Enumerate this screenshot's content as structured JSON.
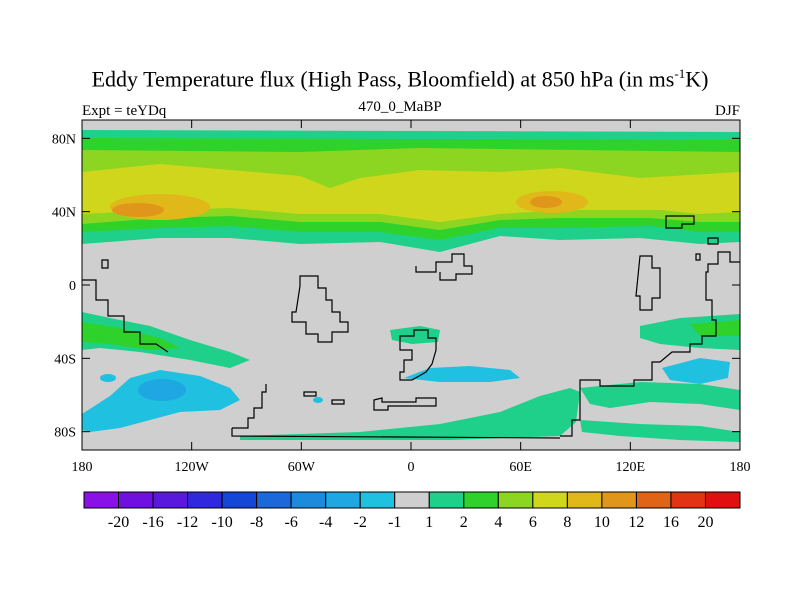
{
  "title": {
    "main": "Eddy Temperature flux (High Pass, Bloomfield) at 850 hPa (in ms",
    "sup": "-1",
    "end": "K)"
  },
  "subtitle_left": "Expt = teYDq",
  "subtitle_center": "470_0_MaBP",
  "subtitle_right": "DJF",
  "x_ticks": [
    "180",
    "120W",
    "60W",
    "0",
    "60E",
    "120E",
    "180"
  ],
  "y_ticks": [
    "80N",
    "40N",
    "0",
    "40S",
    "80S"
  ],
  "colorbar": {
    "colors": [
      "#8a10e8",
      "#7010e0",
      "#5a18dc",
      "#2f28dc",
      "#1446d8",
      "#1a68da",
      "#1c8bde",
      "#1ea7e2",
      "#1fc0e0",
      "#cfcfcf",
      "#1ed08a",
      "#2fd22a",
      "#8cd622",
      "#d0d61c",
      "#e0b81a",
      "#e0961a",
      "#e06416",
      "#e03412",
      "#e01010"
    ],
    "labels": [
      "-20",
      "-16",
      "-12",
      "-10",
      "-8",
      "-6",
      "-4",
      "-2",
      "-1",
      "1",
      "2",
      "4",
      "6",
      "8",
      "10",
      "12",
      "16",
      "20"
    ]
  },
  "chart_data": {
    "type": "heatmap",
    "title": "Eddy Temperature flux (High Pass, Bloomfield) at 850 hPa (in ms-1K)",
    "region": "global",
    "x_range": [
      -180,
      180
    ],
    "y_range": [
      -90,
      90
    ],
    "levels": [
      -20,
      -16,
      -12,
      -10,
      -8,
      -6,
      -4,
      -2,
      -1,
      1,
      2,
      4,
      6,
      8,
      10,
      12,
      16,
      20
    ],
    "features": [
      {
        "lat_band": [
          28,
          85
        ],
        "lon_range": [
          -180,
          180
        ],
        "level_range": [
          1,
          8
        ],
        "note": "zonal band"
      },
      {
        "center_lon": -140,
        "center_lat": 42,
        "level_range": [
          10,
          12
        ]
      },
      {
        "center_lon": 65,
        "center_lat": 45,
        "level_range": [
          10,
          12
        ]
      },
      {
        "center_lon": -135,
        "center_lat": -58,
        "level_range": [
          -4,
          -2
        ]
      },
      {
        "center_lon": 35,
        "center_lat": -44,
        "level_range": [
          -2,
          -1
        ]
      },
      {
        "center_lon": 150,
        "center_lat": -48,
        "level_range": [
          -2,
          -1
        ]
      }
    ]
  }
}
